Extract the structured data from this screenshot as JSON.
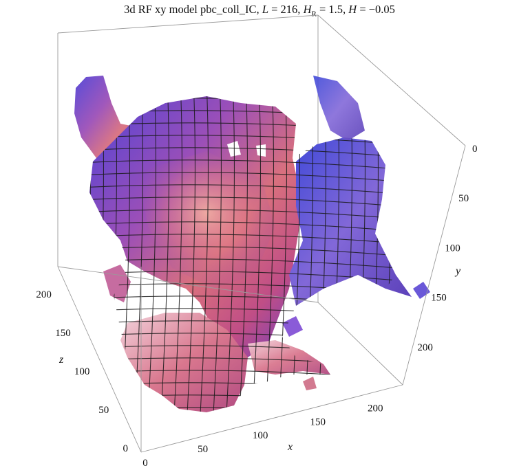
{
  "title": {
    "prefix": "3d RF xy model pbc_coll_IC, ",
    "L_label": "L",
    "L_value": " = 216,   ",
    "HR_label": "H",
    "HR_sub": "R",
    "HR_value": " = 1.5,   ",
    "H_label": "H",
    "H_value": " = −0.05"
  },
  "chart_data": {
    "type": "3d-isosurface",
    "title": "3d RF xy model pbc_coll_IC, L = 216, H_R = 1.5, H = −0.05",
    "parameters": {
      "L": 216,
      "H_R": 1.5,
      "H": -0.05
    },
    "axes": {
      "x": {
        "label": "x",
        "range": [
          0,
          216
        ],
        "ticks": [
          0,
          50,
          100,
          150,
          200
        ]
      },
      "y": {
        "label": "y",
        "range": [
          0,
          216
        ],
        "ticks": [
          0,
          50,
          100,
          150,
          200
        ]
      },
      "z": {
        "label": "z",
        "range": [
          0,
          216
        ],
        "ticks": [
          0,
          50,
          100,
          150,
          200
        ]
      }
    },
    "surface_colors": [
      "#5a3fd0",
      "#8a5bd8",
      "#c0508a",
      "#e9908a",
      "#f4d6da",
      "#7a6ee8"
    ],
    "mesh_lines": true,
    "bounding_box": true
  }
}
